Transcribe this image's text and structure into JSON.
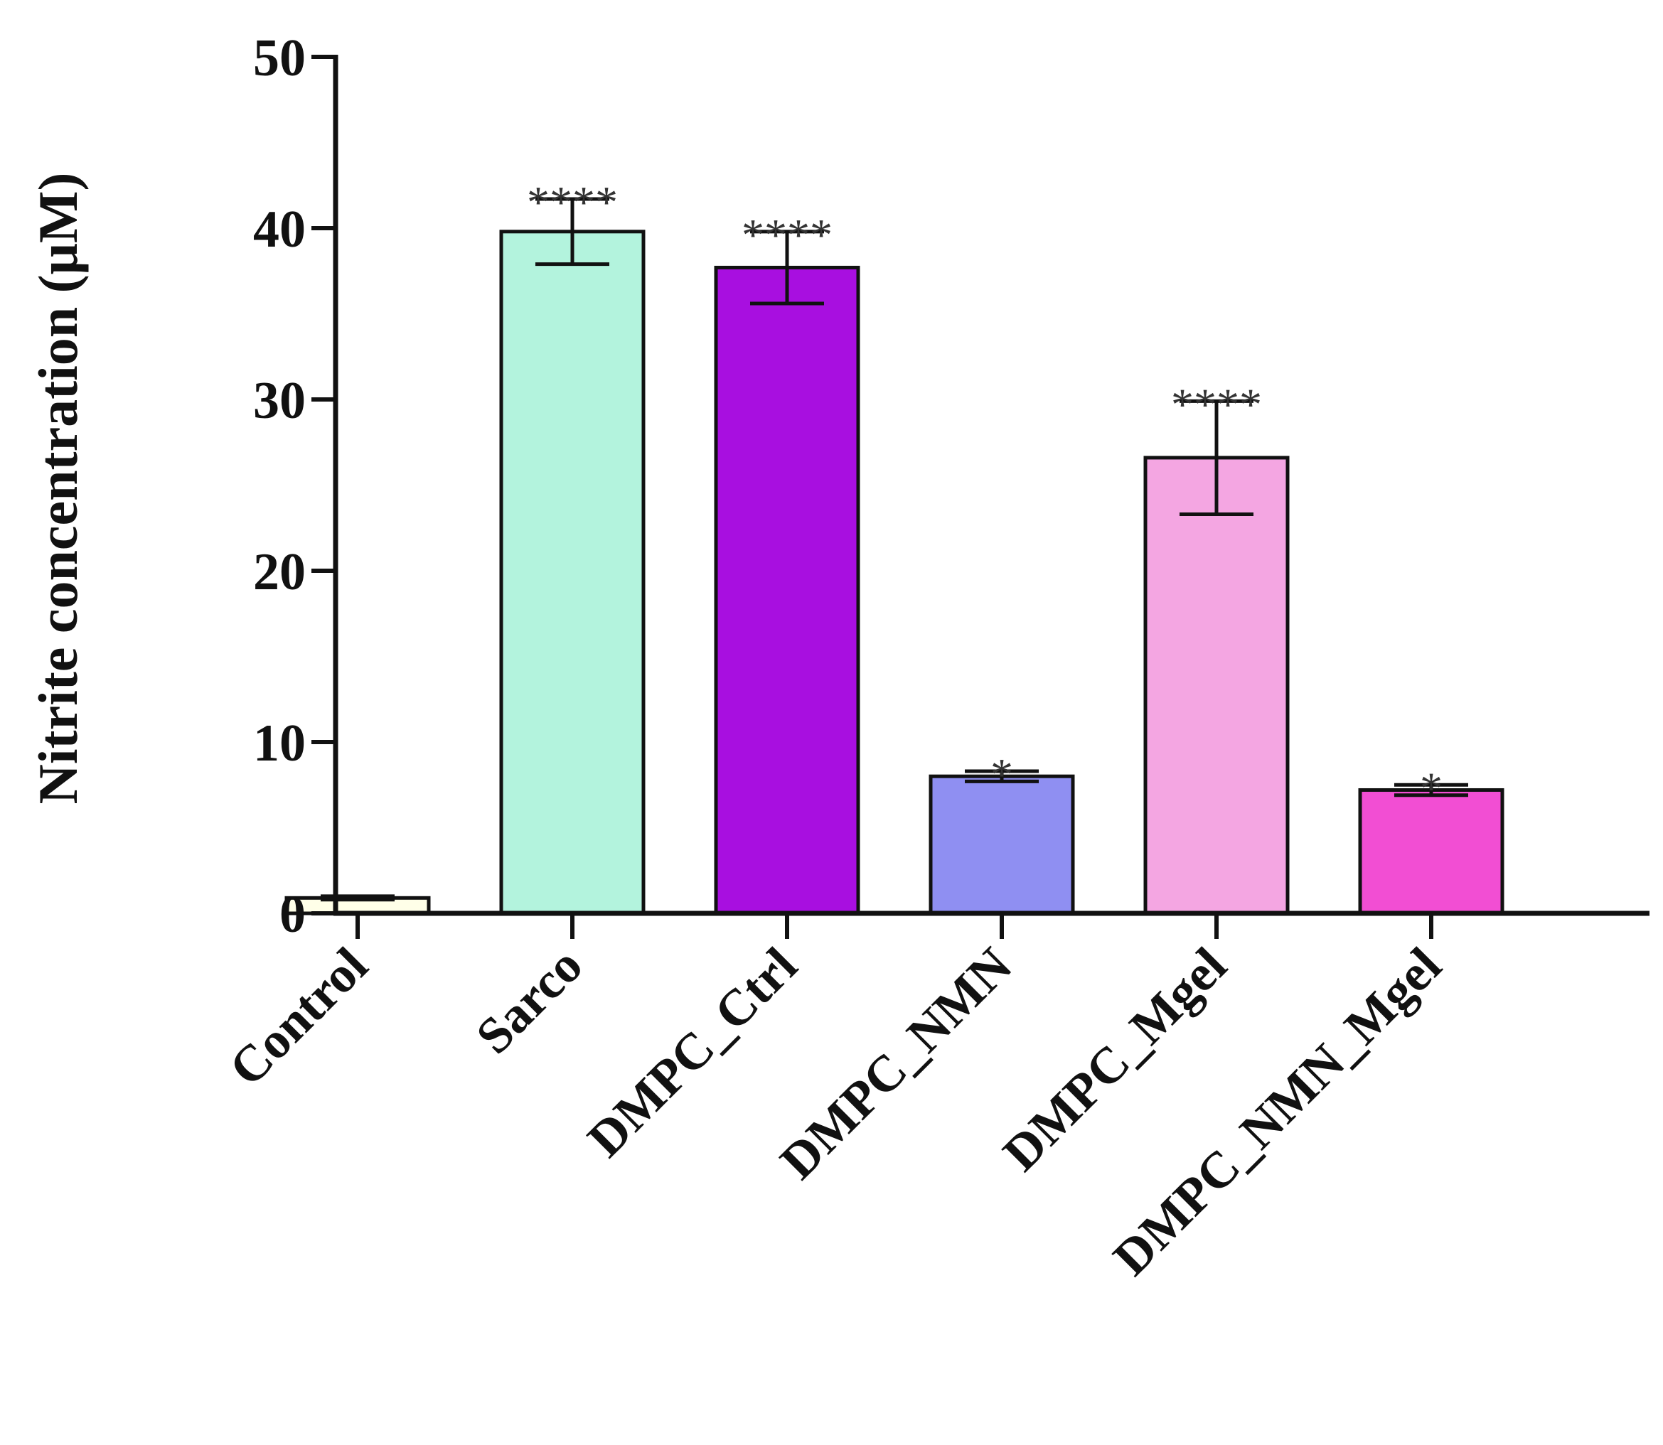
{
  "chart_data": {
    "type": "bar",
    "title": "",
    "xlabel": "",
    "ylabel": "Nitrite concentration (μM)",
    "ylim": [
      0,
      50
    ],
    "yticks": [
      0,
      10,
      20,
      30,
      40,
      50
    ],
    "grid": false,
    "legend": "none",
    "categories": [
      "Control",
      "Sarco",
      "DMPC_Ctrl",
      "DMPC_NMN",
      "DMPC_Mgel",
      "DMPC_NMN_Mgel"
    ],
    "values": [
      0.9,
      39.8,
      37.7,
      8.0,
      26.6,
      7.2
    ],
    "errors": [
      0.1,
      1.9,
      2.1,
      0.3,
      3.3,
      0.3
    ],
    "significance": [
      "",
      "****",
      "****",
      "*",
      "****",
      "*"
    ],
    "colors": [
      "#ffffe8",
      "#b3f3dd",
      "#a80fe0",
      "#8f8ff2",
      "#f4a6e2",
      "#f24ed3"
    ]
  }
}
